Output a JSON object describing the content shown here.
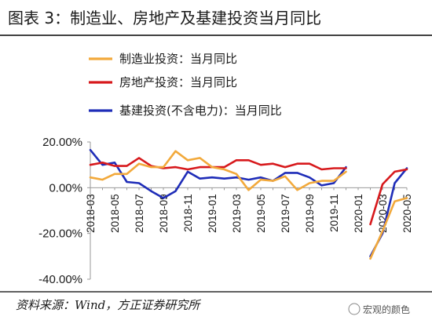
{
  "header": {
    "title": "图表 3：制造业、房地产及基建投资当月同比"
  },
  "footer": {
    "source": "资料来源：Wind，方正证券研究所"
  },
  "watermark": {
    "text": "宏观的颜色"
  },
  "colors": {
    "manufacturing": "#F2A93B",
    "real_estate": "#D7191C",
    "infrastructure": "#1F2DB8",
    "rule": "#000000",
    "axis": "#999999"
  },
  "chart_data": {
    "type": "line",
    "title": "图表 3：制造业、房地产及基建投资当月同比",
    "xlabel": "",
    "ylabel": "",
    "ylim": [
      -0.4,
      0.2
    ],
    "yticks": [
      0.2,
      0.0,
      -0.2,
      -0.4
    ],
    "ytick_labels": [
      "20.00%",
      "0.00%",
      "-20.00%",
      "-40.00%"
    ],
    "x": [
      "2018-03",
      "2018-04",
      "2018-05",
      "2018-06",
      "2018-07",
      "2018-08",
      "2018-09",
      "2018-10",
      "2018-11",
      "2018-12",
      "2019-01",
      "2019-02",
      "2019-03",
      "2019-04",
      "2019-05",
      "2019-06",
      "2019-07",
      "2019-08",
      "2019-09",
      "2019-10",
      "2019-11",
      "2019-12",
      "2020-01",
      "2020-02",
      "2020-03",
      "2020-04",
      "2020-05"
    ],
    "xtick_labels": [
      "2018-03",
      "2018-05",
      "2018-07",
      "2018-09",
      "2018-11",
      "2019-01",
      "2019-03",
      "2019-05",
      "2019-07",
      "2019-09",
      "2019-11",
      "2020-01",
      "2020-03",
      "2020-05"
    ],
    "legend_position": "top-left",
    "grid": false,
    "series": [
      {
        "name": "制造业投资：当月同比",
        "color_key": "manufacturing",
        "values": [
          0.045,
          0.035,
          0.06,
          0.06,
          0.105,
          0.09,
          0.09,
          0.16,
          0.12,
          0.13,
          0.09,
          0.08,
          0.06,
          -0.01,
          0.035,
          0.03,
          0.05,
          -0.01,
          0.02,
          0.03,
          0.03,
          0.07,
          null,
          -0.31,
          -0.19,
          -0.06,
          -0.045
        ]
      },
      {
        "name": "房地产投资：当月同比",
        "color_key": "real_estate",
        "values": [
          0.1,
          0.11,
          0.095,
          0.095,
          0.13,
          0.095,
          0.085,
          0.09,
          0.08,
          0.09,
          0.09,
          0.09,
          0.12,
          0.12,
          0.1,
          0.105,
          0.09,
          0.105,
          0.105,
          0.08,
          0.085,
          0.085,
          null,
          -0.16,
          0.015,
          0.07,
          0.08
        ]
      },
      {
        "name": "基建投资(不含电力)：当月同比",
        "color_key": "infrastructure",
        "values": [
          0.165,
          0.1,
          0.11,
          0.025,
          0.02,
          -0.015,
          -0.045,
          -0.015,
          0.07,
          0.04,
          0.045,
          0.04,
          0.045,
          0.035,
          0.045,
          0.03,
          0.065,
          0.065,
          0.045,
          0.01,
          0.02,
          0.09,
          null,
          -0.3,
          -0.2,
          0.02,
          0.085
        ]
      }
    ]
  }
}
